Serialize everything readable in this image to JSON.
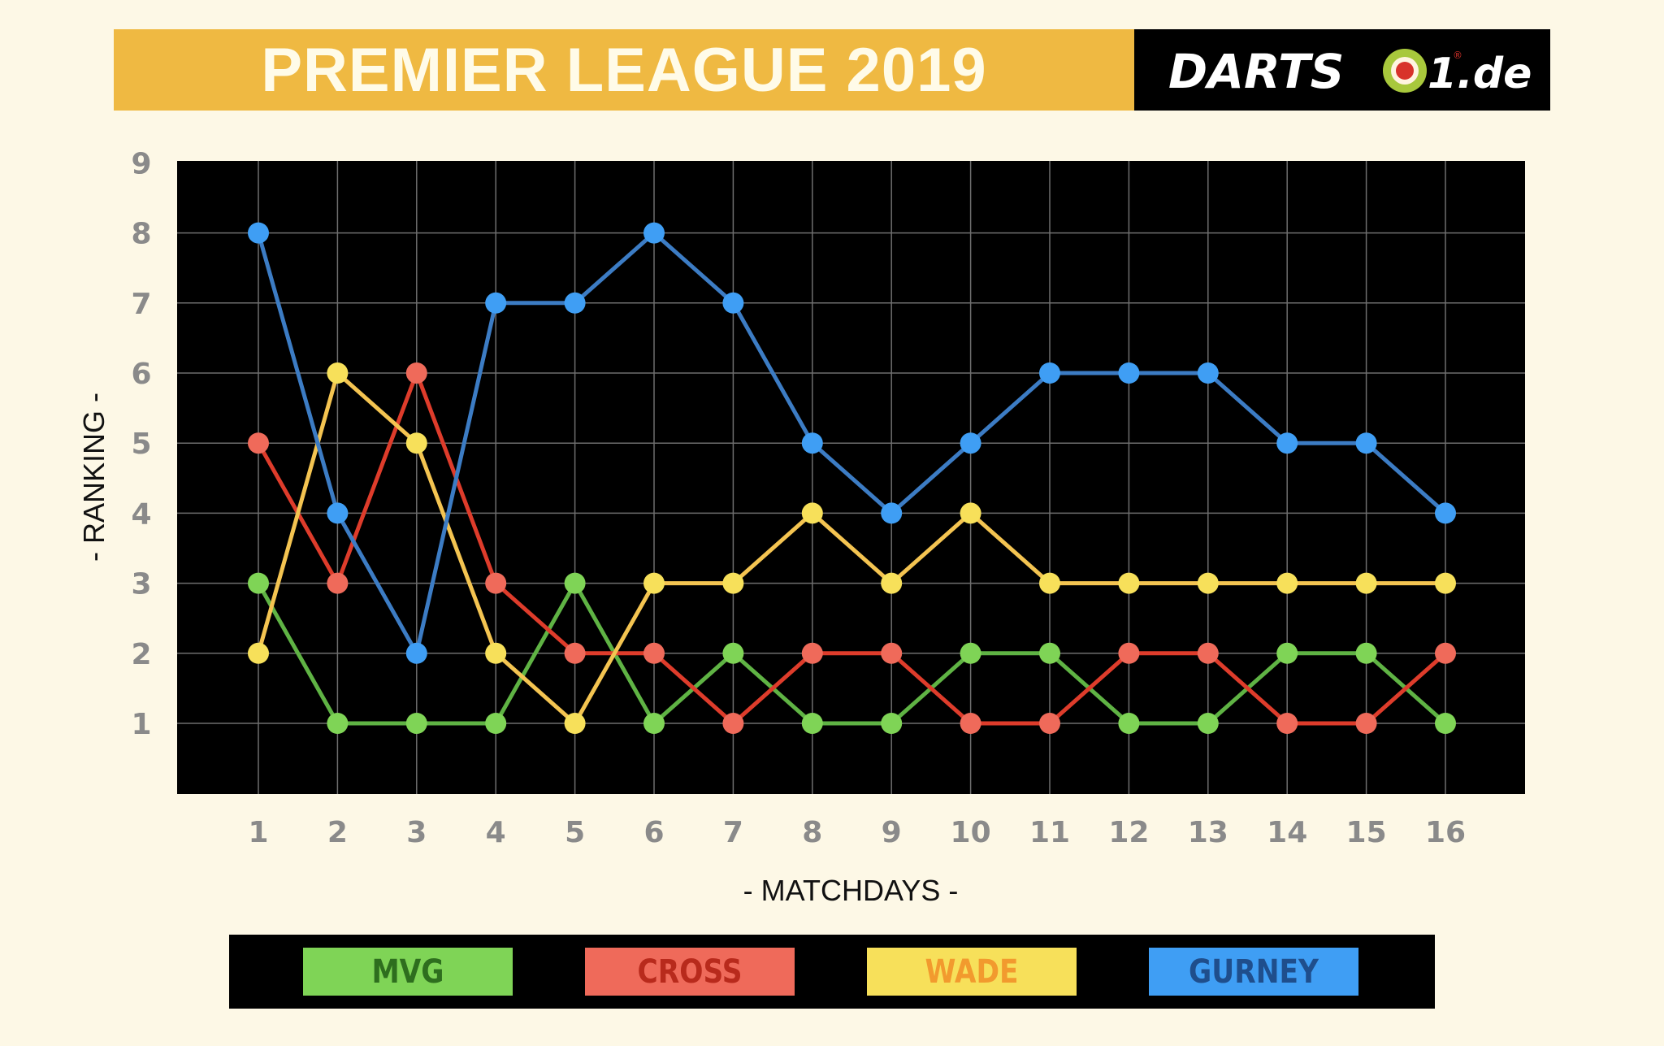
{
  "header": {
    "title": "PREMIER LEAGUE 2019",
    "logo_text_left": "DARTS",
    "logo_text_right": "1.de",
    "logo_mark": "®"
  },
  "colors": {
    "background": "#fdf8e6",
    "title_band": "#efb942",
    "plot_background": "#000000",
    "grid": "#6e6e6e",
    "tick_text": "#8a8a8a"
  },
  "chart_data": {
    "type": "line",
    "xlabel": "- MATCHDAYS -",
    "ylabel": "- RANKING -",
    "x": [
      1,
      2,
      3,
      4,
      5,
      6,
      7,
      8,
      9,
      10,
      11,
      12,
      13,
      14,
      15,
      16
    ],
    "xlim": [
      0,
      17
    ],
    "ylim": [
      0,
      9
    ],
    "yticks": [
      1,
      2,
      3,
      4,
      5,
      6,
      7,
      8,
      9
    ],
    "grid": true,
    "legend_position": "bottom",
    "series": [
      {
        "name": "MVG",
        "color": "#5fb344",
        "marker_color": "#7fd456",
        "legend_bg": "#7fd456",
        "legend_text": "#2e6e1e",
        "values": [
          3,
          1,
          1,
          1,
          3,
          1,
          2,
          1,
          1,
          2,
          2,
          1,
          1,
          2,
          2,
          1
        ]
      },
      {
        "name": "CROSS",
        "color": "#de3c2b",
        "marker_color": "#ef6a5a",
        "legend_bg": "#ef6a5a",
        "legend_text": "#b82a1c",
        "values": [
          5,
          3,
          6,
          3,
          2,
          2,
          1,
          2,
          2,
          1,
          1,
          2,
          2,
          1,
          1,
          2
        ]
      },
      {
        "name": "WADE",
        "color": "#f4c451",
        "marker_color": "#f7e05a",
        "legend_bg": "#f7e05a",
        "legend_text": "#f29a2e",
        "values": [
          2,
          6,
          5,
          2,
          1,
          3,
          3,
          4,
          3,
          4,
          3,
          3,
          3,
          3,
          3,
          3
        ]
      },
      {
        "name": "GURNEY",
        "color": "#3c7cc4",
        "marker_color": "#3f9ef4",
        "legend_bg": "#3f9ef4",
        "legend_text": "#1f4e8c",
        "values": [
          8,
          4,
          2,
          7,
          7,
          8,
          7,
          5,
          4,
          5,
          6,
          6,
          6,
          5,
          5,
          4
        ]
      }
    ]
  }
}
